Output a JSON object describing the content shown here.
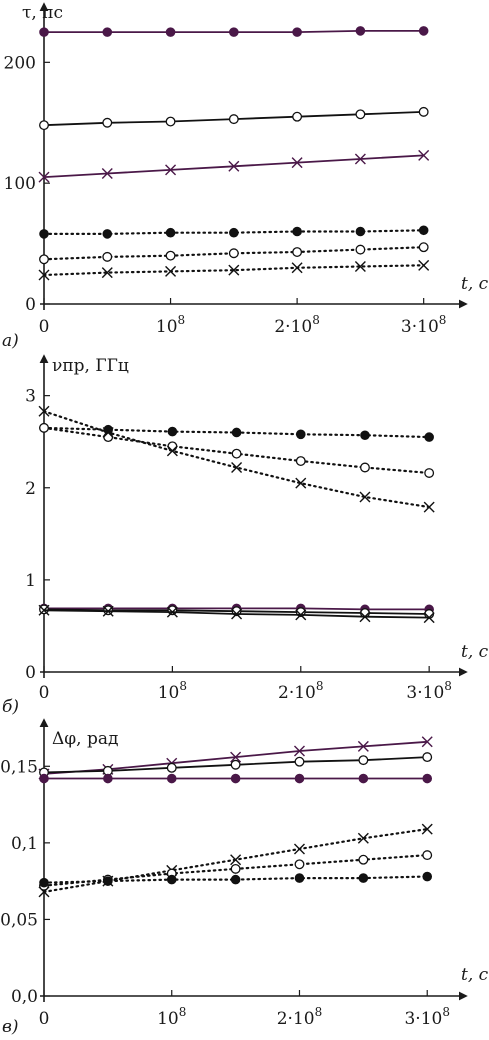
{
  "colors": {
    "purple": "#4a1848",
    "black": "#111111"
  },
  "chart_data": [
    {
      "type": "line",
      "panel_label": "а)",
      "ylabel": "τ, пс",
      "xlabel": "t, с",
      "xlim": [
        0,
        305000000.0
      ],
      "ylim": [
        0,
        240
      ],
      "yticks": [
        0,
        100,
        200
      ],
      "ytick_labels": [
        "0",
        "100",
        "200"
      ],
      "xticks": [
        0,
        100000000.0,
        200000000.0,
        300000000.0
      ],
      "xtick_labels": [
        [
          "0",
          ""
        ],
        [
          "10",
          "8"
        ],
        [
          "2·10",
          "8"
        ],
        [
          "3·10",
          "8"
        ]
      ],
      "x": [
        0,
        50000000.0,
        100000000.0,
        150000000.0,
        200000000.0,
        250000000.0,
        300000000.0
      ],
      "series": [
        {
          "marker": "filled",
          "style": "solid",
          "color": "purple",
          "values": [
            225,
            225,
            225,
            225,
            225,
            226,
            226
          ]
        },
        {
          "marker": "open",
          "style": "solid",
          "color": "black",
          "values": [
            148,
            150,
            151,
            153,
            155,
            157,
            159
          ]
        },
        {
          "marker": "cross",
          "style": "solid",
          "color": "purple",
          "values": [
            105,
            108,
            111,
            114,
            117,
            120,
            123
          ]
        },
        {
          "marker": "filled",
          "style": "dotted",
          "color": "black",
          "values": [
            58,
            58,
            59,
            59,
            60,
            60,
            61
          ]
        },
        {
          "marker": "open",
          "style": "dotted",
          "color": "black",
          "values": [
            37,
            39,
            40,
            42,
            43,
            45,
            47
          ]
        },
        {
          "marker": "cross",
          "style": "dotted",
          "color": "black",
          "values": [
            24,
            26,
            27,
            28,
            30,
            31,
            32
          ]
        }
      ]
    },
    {
      "type": "line",
      "panel_label": "б)",
      "ylabel": "νпр, ГГц",
      "xlabel": "t, с",
      "xlim": [
        0,
        310000000.0
      ],
      "ylim": [
        0,
        3.3
      ],
      "yticks": [
        0,
        1,
        2,
        3
      ],
      "ytick_labels": [
        "0",
        "1",
        "2",
        "3"
      ],
      "xticks": [
        0,
        100000000.0,
        200000000.0,
        300000000.0
      ],
      "xtick_labels": [
        [
          "0",
          ""
        ],
        [
          "10",
          "8"
        ],
        [
          "2·10",
          "8"
        ],
        [
          "3·10",
          "8"
        ]
      ],
      "x": [
        0,
        50000000.0,
        100000000.0,
        150000000.0,
        200000000.0,
        250000000.0,
        300000000.0
      ],
      "series": [
        {
          "marker": "filled",
          "style": "dotted",
          "color": "black",
          "values": [
            2.65,
            2.63,
            2.61,
            2.6,
            2.58,
            2.57,
            2.55
          ]
        },
        {
          "marker": "open",
          "style": "dotted",
          "color": "black",
          "values": [
            2.65,
            2.55,
            2.45,
            2.37,
            2.29,
            2.22,
            2.16
          ]
        },
        {
          "marker": "cross",
          "style": "dotted",
          "color": "black",
          "values": [
            2.83,
            2.6,
            2.4,
            2.22,
            2.05,
            1.9,
            1.79
          ]
        },
        {
          "marker": "filled",
          "style": "solid",
          "color": "purple",
          "values": [
            0.69,
            0.69,
            0.69,
            0.69,
            0.69,
            0.68,
            0.68
          ]
        },
        {
          "marker": "open",
          "style": "solid",
          "color": "black",
          "values": [
            0.68,
            0.67,
            0.67,
            0.66,
            0.65,
            0.64,
            0.63
          ]
        },
        {
          "marker": "cross",
          "style": "solid",
          "color": "black",
          "values": [
            0.67,
            0.66,
            0.65,
            0.63,
            0.62,
            0.6,
            0.59
          ]
        }
      ]
    },
    {
      "type": "line",
      "panel_label": "в)",
      "ylabel": "Δφ, рад",
      "xlabel": "t, с",
      "xlim": [
        0,
        310000000.0
      ],
      "ylim": [
        0,
        0.175
      ],
      "yticks": [
        0,
        0.05,
        0.1,
        0.15
      ],
      "ytick_labels": [
        "0,0",
        "0,05",
        "0,1",
        "0,15"
      ],
      "xticks": [
        0,
        100000000.0,
        200000000.0,
        300000000.0
      ],
      "xtick_labels": [
        [
          "0",
          ""
        ],
        [
          "10",
          "8"
        ],
        [
          "2·10",
          "8"
        ],
        [
          "3·10",
          "8"
        ]
      ],
      "x": [
        0,
        50000000.0,
        100000000.0,
        150000000.0,
        200000000.0,
        250000000.0,
        300000000.0
      ],
      "series": [
        {
          "marker": "cross",
          "style": "solid",
          "color": "purple",
          "values": [
            0.145,
            0.148,
            0.152,
            0.156,
            0.16,
            0.163,
            0.166
          ]
        },
        {
          "marker": "open",
          "style": "solid",
          "color": "black",
          "values": [
            0.146,
            0.147,
            0.149,
            0.151,
            0.153,
            0.154,
            0.156
          ]
        },
        {
          "marker": "filled",
          "style": "solid",
          "color": "purple",
          "values": [
            0.142,
            0.142,
            0.142,
            0.142,
            0.142,
            0.142,
            0.142
          ]
        },
        {
          "marker": "cross",
          "style": "dotted",
          "color": "black",
          "values": [
            0.068,
            0.075,
            0.082,
            0.089,
            0.096,
            0.103,
            0.109
          ]
        },
        {
          "marker": "open",
          "style": "dotted",
          "color": "black",
          "values": [
            0.072,
            0.076,
            0.08,
            0.083,
            0.086,
            0.089,
            0.092
          ]
        },
        {
          "marker": "filled",
          "style": "dotted",
          "color": "black",
          "values": [
            0.074,
            0.075,
            0.076,
            0.076,
            0.077,
            0.077,
            0.078
          ]
        }
      ]
    }
  ]
}
